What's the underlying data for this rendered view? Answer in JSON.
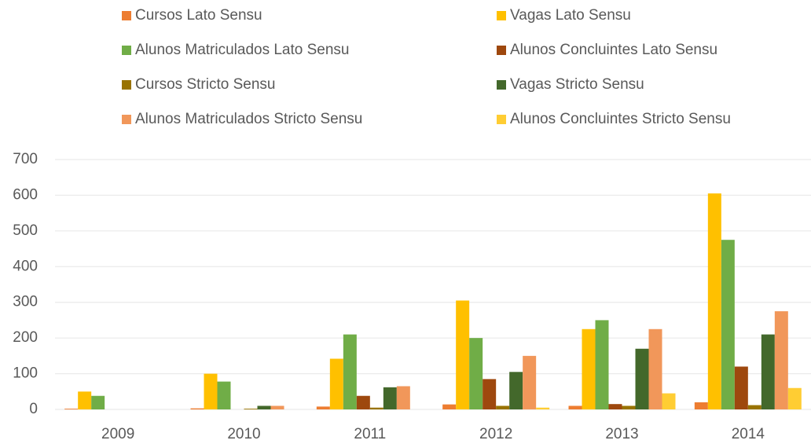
{
  "chart_data": {
    "type": "bar",
    "categories": [
      "2009",
      "2010",
      "2011",
      "2012",
      "2013",
      "2014"
    ],
    "series": [
      {
        "name": "Cursos Lato Sensu",
        "color": "#ed7d31",
        "values": [
          2,
          3,
          8,
          14,
          10,
          20
        ]
      },
      {
        "name": "Vagas Lato Sensu",
        "color": "#ffc000",
        "values": [
          50,
          100,
          142,
          305,
          225,
          605
        ]
      },
      {
        "name": "Alunos Matriculados Lato Sensu",
        "color": "#70ad47",
        "values": [
          38,
          78,
          210,
          200,
          250,
          475
        ]
      },
      {
        "name": "Alunos Concluintes Lato Sensu",
        "color": "#9e480e",
        "values": [
          0,
          0,
          38,
          85,
          15,
          120
        ]
      },
      {
        "name": "Cursos Stricto Sensu",
        "color": "#997300",
        "values": [
          0,
          2,
          5,
          10,
          10,
          12
        ]
      },
      {
        "name": "Vagas Stricto Sensu",
        "color": "#43682b",
        "values": [
          0,
          10,
          62,
          105,
          170,
          210
        ]
      },
      {
        "name": "Alunos Matriculados Stricto Sensu",
        "color": "#f1975a",
        "values": [
          0,
          10,
          65,
          150,
          225,
          275
        ]
      },
      {
        "name": "Alunos Concluintes Stricto Sensu",
        "color": "#ffcd33",
        "values": [
          0,
          0,
          0,
          5,
          45,
          60
        ]
      }
    ],
    "ylim": [
      0,
      700
    ],
    "yticks": [
      0,
      100,
      200,
      300,
      400,
      500,
      600,
      700
    ],
    "grid": true
  }
}
